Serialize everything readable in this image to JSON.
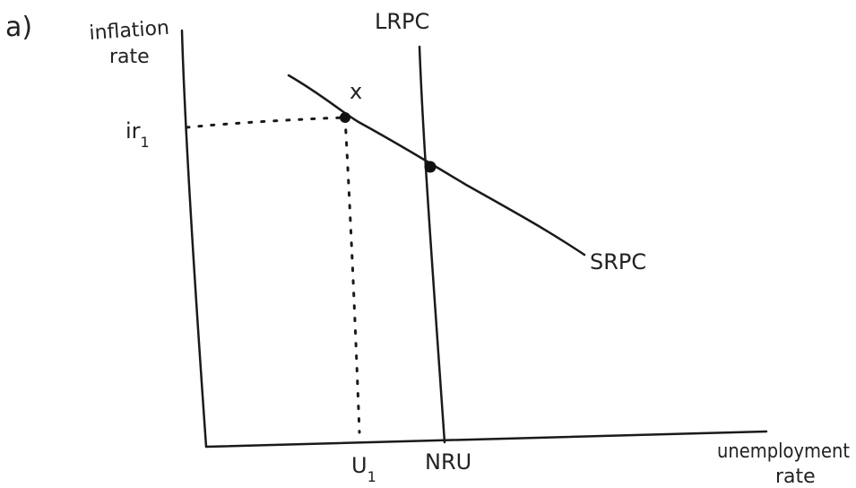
{
  "part_label": "a)",
  "y_axis_label_line1": "inflation",
  "y_axis_label_line2": "rate",
  "x_axis_label_line1": "unemployment",
  "x_axis_label_line2": "rate",
  "lrpc_label": "LRPC",
  "srpc_label": "SRPC",
  "point_x_label": "x",
  "ir1_label": "ir",
  "ir1_sub": "1",
  "u1_label": "U",
  "u1_sub": "1",
  "nru_label": "NRU"
}
